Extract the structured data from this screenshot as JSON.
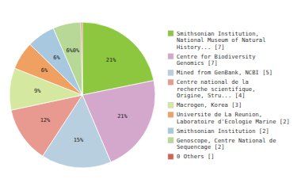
{
  "chart_data": {
    "type": "pie",
    "categories": [
      "Smithsonian Institution,\nNational Museum of Natural\nHistory... [7]",
      "Centre for Biodiversity\nGenomics [7]",
      "Mined from GenBank, NCBI [5]",
      "Centre national de la\nrecherche scientifique,\nOrigine, Stru... [4]",
      "Macrogen, Korea [3]",
      "Universite de La Reunion,\nLaboratoire d'Ecologie Marine [2]",
      "Smithsonian Institution [2]",
      "Genoscope, Centre National de\nSequencage [2]",
      "0 Others []"
    ],
    "values": [
      21,
      21,
      15,
      12,
      9,
      6,
      6,
      6,
      0.3
    ],
    "value_labels": [
      "21%",
      "21%",
      "15%",
      "12%",
      "9%",
      "6%",
      "6%",
      "6%0%",
      null
    ],
    "colors": [
      "#8dc63f",
      "#d4a8cc",
      "#b8cfe0",
      "#e89a90",
      "#d4e8a0",
      "#f0a060",
      "#a8c8e0",
      "#b8d898",
      "#d86050"
    ],
    "data_labels": true,
    "legend": "right"
  }
}
